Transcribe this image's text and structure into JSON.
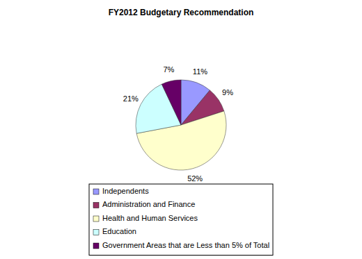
{
  "chart_data": {
    "type": "pie",
    "title": "FY2012 Budgetary Recommendation",
    "categories": [
      "Independents",
      "Administration and Finance",
      "Health and Human Services",
      "Education",
      "Government Areas that are Less than 5% of Total"
    ],
    "values": [
      11,
      9,
      52,
      21,
      7
    ],
    "value_labels": [
      "11%",
      "9%",
      "52%",
      "21%",
      "7%"
    ],
    "colors": [
      "#9999ff",
      "#993366",
      "#ffffcc",
      "#ccffff",
      "#660066"
    ],
    "data_labels": true,
    "legend": "bottom"
  }
}
